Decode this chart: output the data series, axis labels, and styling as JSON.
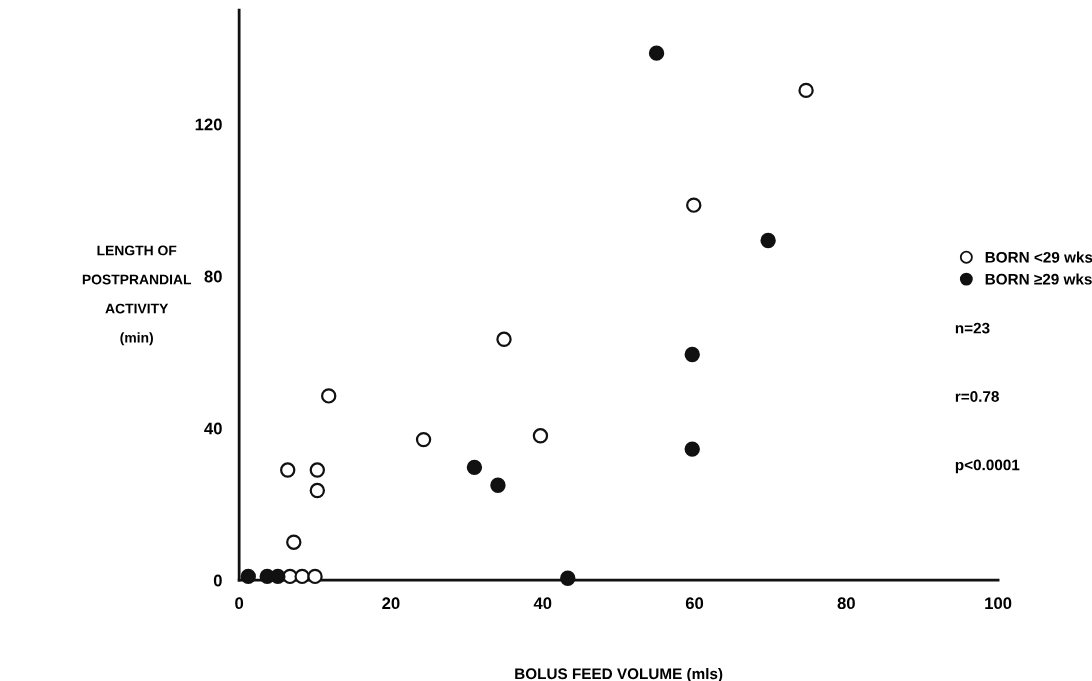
{
  "chart_data": {
    "type": "scatter",
    "xlabel": "BOLUS FEED VOLUME (mls)",
    "ylabel": "LENGTH OF\nPOSTPRANDIAL\nACTIVITY\n(min)",
    "xlim": [
      0,
      100
    ],
    "ylim": [
      0,
      150
    ],
    "xticks": [
      0,
      20,
      40,
      60,
      80,
      100
    ],
    "yticks": [
      0,
      40,
      80,
      120
    ],
    "grid": false,
    "legend": "right",
    "marker": "circle",
    "series": [
      {
        "name": "BORN <29 wks",
        "color": "#ffffff",
        "x": [
          6.7,
          8.3,
          10,
          7.2,
          6.4,
          10.3,
          10.3,
          11.8,
          24.3,
          34.9,
          39.7,
          59.9,
          74.7
        ],
        "values": [
          1,
          1,
          1,
          10,
          29,
          29,
          23.6,
          48.5,
          37,
          63.4,
          38,
          98.7,
          128.9
        ]
      },
      {
        "name": "BORN ≥29 wks",
        "color": "#111111",
        "x": [
          1.2,
          3.7,
          5.1,
          31,
          34.1,
          43.3,
          55,
          69.7,
          59.7,
          59.7
        ],
        "values": [
          1,
          1,
          1,
          29.7,
          25,
          0.5,
          138.7,
          89.4,
          59.4,
          34.5
        ]
      }
    ],
    "annotations": [
      "n=23",
      "r=0.78",
      "p<0.0001"
    ]
  }
}
